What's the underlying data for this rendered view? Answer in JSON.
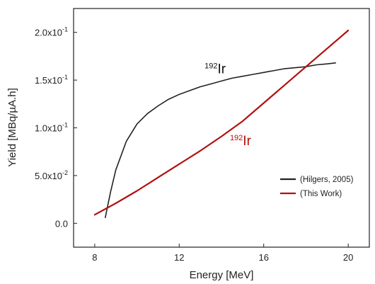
{
  "chart_data": {
    "type": "line",
    "xlabel": "Energy [MeV]",
    "ylabel": "Yield [MBq/µA.h]",
    "xlim": [
      7.0,
      21.0
    ],
    "ylim": [
      -0.025,
      0.225
    ],
    "x_ticks": [
      8,
      12,
      16,
      20
    ],
    "x_tick_labels": [
      "8",
      "12",
      "16",
      "20"
    ],
    "y_ticks": [
      0.0,
      0.05,
      0.1,
      0.15,
      0.2
    ],
    "y_tick_labels": [
      {
        "mantissa": "0.0",
        "exp": ""
      },
      {
        "mantissa": "5.0x10",
        "exp": "-2"
      },
      {
        "mantissa": "1.0x10",
        "exp": "-1"
      },
      {
        "mantissa": "1.5x10",
        "exp": "-1"
      },
      {
        "mantissa": "2.0x10",
        "exp": "-1"
      }
    ],
    "grid": false,
    "legend_position": "lower-right",
    "series": [
      {
        "name": "(Hilgers, 2005)",
        "color": "#222222",
        "x": [
          8.5,
          8.75,
          9.0,
          9.5,
          10.0,
          10.5,
          11.0,
          11.5,
          12.0,
          12.5,
          13.0,
          13.5,
          14.0,
          14.5,
          15.0,
          15.5,
          16.0,
          16.5,
          17.0,
          17.5,
          18.0,
          18.5,
          19.0,
          19.4
        ],
        "y": [
          0.006,
          0.033,
          0.056,
          0.086,
          0.104,
          0.115,
          0.123,
          0.13,
          0.135,
          0.139,
          0.143,
          0.146,
          0.149,
          0.152,
          0.154,
          0.156,
          0.158,
          0.16,
          0.162,
          0.163,
          0.164,
          0.166,
          0.167,
          0.168
        ]
      },
      {
        "name": "(This Work)",
        "color": "#b01010",
        "x": [
          8.0,
          9.0,
          10.0,
          11.0,
          12.0,
          13.0,
          14.0,
          15.0,
          16.0,
          17.0,
          18.0,
          19.0,
          20.0
        ],
        "y": [
          0.009,
          0.021,
          0.034,
          0.048,
          0.062,
          0.076,
          0.091,
          0.107,
          0.126,
          0.145,
          0.164,
          0.183,
          0.202
        ]
      }
    ],
    "annotations": [
      {
        "sup": "192",
        "text": "Ir",
        "color": "#111111",
        "x": 13.2,
        "y": 0.157
      },
      {
        "sup": "192",
        "text": "Ir",
        "color": "#b01010",
        "x": 14.4,
        "y": 0.082
      }
    ]
  }
}
